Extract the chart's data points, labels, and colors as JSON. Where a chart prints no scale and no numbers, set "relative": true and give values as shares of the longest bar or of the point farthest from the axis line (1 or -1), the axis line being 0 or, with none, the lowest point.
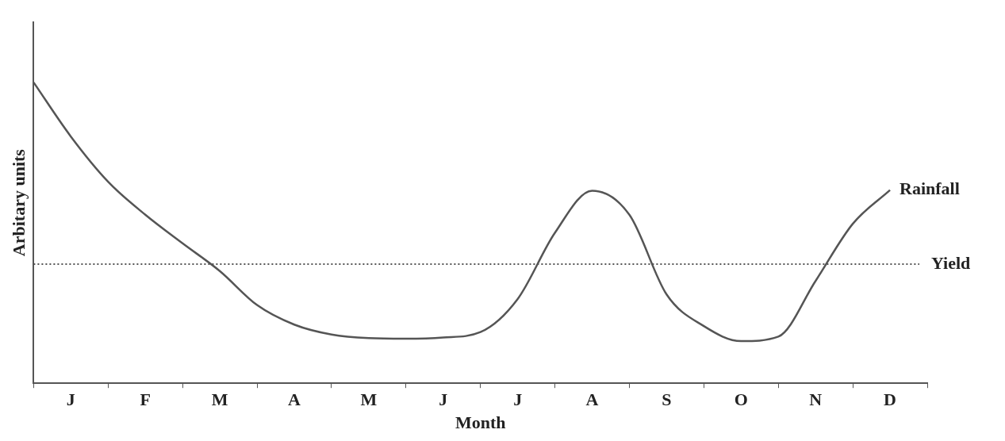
{
  "chart_data": {
    "type": "line",
    "xlabel": "Month",
    "ylabel": "Arbitary units",
    "relative": true,
    "categories": [
      null,
      "J",
      null,
      "F",
      null,
      "M",
      null,
      "A",
      null,
      "M",
      null,
      "J",
      null,
      "J",
      null,
      "A",
      null,
      "S",
      null,
      "O",
      null,
      "N",
      null,
      "D",
      null
    ],
    "series": [
      {
        "name": "Rainfall",
        "color": "#555555",
        "values": [
          1.0,
          0.82,
          0.67,
          0.56,
          0.465,
          0.373,
          0.26,
          0.195,
          0.162,
          0.15,
          0.148,
          0.152,
          0.17,
          0.28,
          0.5,
          0.64,
          0.56,
          0.295,
          0.19,
          0.14,
          0.155,
          0.34,
          0.53,
          0.642,
          null
        ]
      }
    ],
    "ref_lines": [
      {
        "axis": "y",
        "value": 0.396,
        "label": "Yield",
        "color": "#555555",
        "line_style": "dotted"
      }
    ],
    "marker": "none",
    "line_style": "solid",
    "grid": false,
    "legend": false
  }
}
